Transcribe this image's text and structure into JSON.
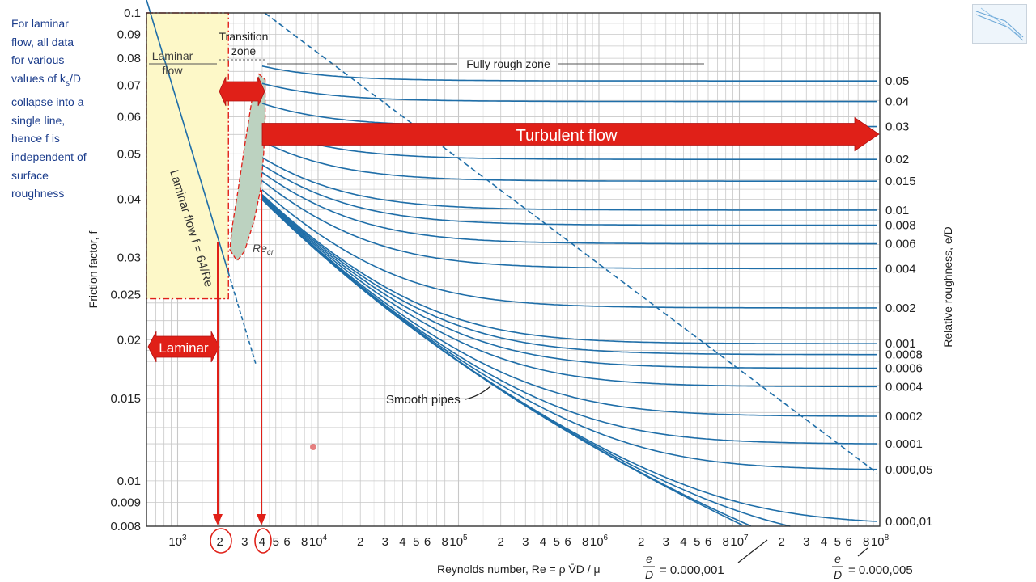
{
  "note": {
    "lines": [
      "For laminar",
      "flow, all data",
      "for various",
      "values of k",
      "s",
      "/D",
      "collapse into a",
      "single line,",
      "hence f is",
      "independent of",
      "surface",
      "roughness"
    ]
  },
  "colors": {
    "curve": "#1f6ea8",
    "grid": "#c8c8c8",
    "axis": "#333333",
    "arrow": "#e02018",
    "laminar_fill": "#fdf8c8",
    "transition_fill": "#bcd2c0",
    "note_text": "#1c3d8c"
  },
  "chart_data": {
    "type": "line",
    "xscale": "log",
    "yscale": "log",
    "xlim": [
      600,
      100000000
    ],
    "ylim": [
      0.008,
      0.1
    ],
    "xlabel": "Reynolds number, Re = ρ V̄D / μ",
    "ylabel": "Friction factor, f",
    "y2label": "Relative roughness, e/D",
    "y_ticks": [
      {
        "v": 0.1,
        "l": "0.1"
      },
      {
        "v": 0.09,
        "l": "0.09"
      },
      {
        "v": 0.08,
        "l": "0.08"
      },
      {
        "v": 0.07,
        "l": "0.07"
      },
      {
        "v": 0.06,
        "l": "0.06"
      },
      {
        "v": 0.05,
        "l": "0.05"
      },
      {
        "v": 0.04,
        "l": "0.04"
      },
      {
        "v": 0.03,
        "l": "0.03"
      },
      {
        "v": 0.025,
        "l": "0.025"
      },
      {
        "v": 0.02,
        "l": "0.02"
      },
      {
        "v": 0.015,
        "l": "0.015"
      },
      {
        "v": 0.01,
        "l": "0.01"
      },
      {
        "v": 0.009,
        "l": "0.009"
      },
      {
        "v": 0.008,
        "l": "0.008"
      }
    ],
    "x_ticks": [
      {
        "v": 1000,
        "l": "10",
        "sup": "3"
      },
      {
        "v": 2000,
        "l": "2"
      },
      {
        "v": 3000,
        "l": "3"
      },
      {
        "v": 4000,
        "l": "4"
      },
      {
        "v": 5000,
        "l": "5"
      },
      {
        "v": 6000,
        "l": "6"
      },
      {
        "v": 8000,
        "l": "8"
      },
      {
        "v": 10000,
        "l": "10",
        "sup": "4"
      },
      {
        "v": 20000,
        "l": "2"
      },
      {
        "v": 30000,
        "l": "3"
      },
      {
        "v": 40000,
        "l": "4"
      },
      {
        "v": 50000,
        "l": "5"
      },
      {
        "v": 60000,
        "l": "6"
      },
      {
        "v": 80000,
        "l": "8"
      },
      {
        "v": 100000,
        "l": "10",
        "sup": "5"
      },
      {
        "v": 200000,
        "l": "2"
      },
      {
        "v": 300000,
        "l": "3"
      },
      {
        "v": 400000,
        "l": "4"
      },
      {
        "v": 500000,
        "l": "5"
      },
      {
        "v": 600000,
        "l": "6"
      },
      {
        "v": 800000,
        "l": "8"
      },
      {
        "v": 1000000,
        "l": "10",
        "sup": "6"
      },
      {
        "v": 2000000,
        "l": "2"
      },
      {
        "v": 3000000,
        "l": "3"
      },
      {
        "v": 4000000,
        "l": "4"
      },
      {
        "v": 5000000,
        "l": "5"
      },
      {
        "v": 6000000,
        "l": "6"
      },
      {
        "v": 8000000,
        "l": "8"
      },
      {
        "v": 10000000,
        "l": "10",
        "sup": "7"
      },
      {
        "v": 20000000,
        "l": "2"
      },
      {
        "v": 30000000,
        "l": "3"
      },
      {
        "v": 40000000,
        "l": "4"
      },
      {
        "v": 50000000,
        "l": "5"
      },
      {
        "v": 60000000,
        "l": "6"
      },
      {
        "v": 80000000,
        "l": "8"
      },
      {
        "v": 100000000,
        "l": "10",
        "sup": "8"
      }
    ],
    "roughness_curves": [
      {
        "rr": 0.05,
        "label": "0.05"
      },
      {
        "rr": 0.04,
        "label": "0.04"
      },
      {
        "rr": 0.03,
        "label": "0.03"
      },
      {
        "rr": 0.02,
        "label": "0.02"
      },
      {
        "rr": 0.015,
        "label": "0.015"
      },
      {
        "rr": 0.01,
        "label": "0.01"
      },
      {
        "rr": 0.008,
        "label": "0.008"
      },
      {
        "rr": 0.006,
        "label": "0.006"
      },
      {
        "rr": 0.004,
        "label": "0.004"
      },
      {
        "rr": 0.002,
        "label": "0.002"
      },
      {
        "rr": 0.001,
        "label": "0.001"
      },
      {
        "rr": 0.0008,
        "label": "0.0008"
      },
      {
        "rr": 0.0006,
        "label": "0.0006"
      },
      {
        "rr": 0.0004,
        "label": "0.0004"
      },
      {
        "rr": 0.0002,
        "label": "0.0002"
      },
      {
        "rr": 0.0001,
        "label": "0.0001"
      },
      {
        "rr": 5e-05,
        "label": "0.000,05"
      },
      {
        "rr": 1e-05,
        "label": "0.000,01"
      },
      {
        "rr": 5e-06,
        "label": ""
      },
      {
        "rr": 1e-06,
        "label": ""
      },
      {
        "rr": 0,
        "label": ""
      }
    ],
    "laminar_line": {
      "formula": "f = 64/Re",
      "solid_x": [
        600,
        2300
      ],
      "dashed_x": [
        2300,
        3600
      ]
    },
    "fully_rough_boundary": {
      "style": "dashed"
    },
    "annotations": {
      "laminar_box": "Laminar\nflow",
      "transition_zone": "Transition\nzone",
      "fully_rough_zone": "Fully rough zone",
      "turbulent_arrow": "Turbulent flow",
      "laminar_arrow": "Laminar",
      "laminar_rotated": "Laminar flow f = 64/Re",
      "re_cr": "Re",
      "re_cr_sub": "cr",
      "smooth_pipes": "Smooth pipes",
      "ed_label_a": "e/D = 0.000,001",
      "ed_label_b": "e/D = 0.000,005",
      "ed_value_a": "= 0.000,001",
      "ed_value_b": "= 0.000,005",
      "circled_2": "2",
      "circled_4": "4"
    }
  }
}
